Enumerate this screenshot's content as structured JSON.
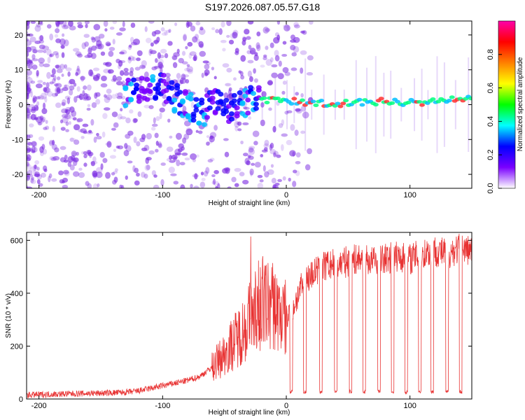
{
  "title": "S197.2026.087.05.57.G18",
  "colors": {
    "snr_line": "#e83232",
    "spectro_points": "#7b2be2",
    "colorbar": [
      "#ffffff",
      "#7a00ff",
      "#0000ff",
      "#00ffff",
      "#00ff00",
      "#ffff00",
      "#ff8000",
      "#ff0000",
      "#ff00aa"
    ]
  },
  "chart_data": [
    {
      "type": "heatmap",
      "name": "spectrogram",
      "xlabel": "Height of straight line (km)",
      "ylabel": "Frequency (Hz)",
      "xlim": [
        -210,
        150
      ],
      "ylim": [
        -24,
        24
      ],
      "xticks": [
        -200,
        -100,
        0,
        100
      ],
      "yticks": [
        -20,
        -10,
        0,
        10,
        20
      ],
      "colorbar": {
        "label": "Normalized spectral amplitude",
        "ticks": [
          "0.0",
          "0.2",
          "0.4",
          "0.6",
          "0.8"
        ],
        "range": [
          0,
          1
        ]
      },
      "ridge": {
        "x": [
          -130,
          -115,
          -105,
          -100,
          -95,
          -85,
          -75,
          -65,
          -60,
          -55,
          -45,
          -35,
          -25,
          -15,
          0,
          25,
          50,
          75,
          100,
          125,
          150
        ],
        "frequency": [
          3,
          4,
          5,
          5,
          3,
          1,
          -1,
          -2,
          2,
          0,
          -1,
          0,
          2,
          1.5,
          1,
          0.5,
          0.5,
          0.8,
          0.8,
          1.0,
          1.5
        ]
      }
    },
    {
      "type": "line",
      "name": "snr",
      "xlabel": "Height of straight line (km)",
      "ylabel": "SNR (10 * v/v)",
      "xlim": [
        -210,
        150
      ],
      "ylim": [
        0,
        630
      ],
      "xticks": [
        -200,
        -100,
        0,
        100
      ],
      "yticks": [
        0,
        200,
        400,
        600
      ],
      "series": [
        {
          "name": "SNR",
          "x": [
            -210,
            -190,
            -170,
            -150,
            -130,
            -120,
            -110,
            -100,
            -90,
            -80,
            -70,
            -60,
            -50,
            -40,
            -35,
            -30,
            -25,
            -20,
            -15,
            -10,
            -5,
            0,
            5,
            10,
            15,
            20,
            30,
            40,
            50,
            60,
            70,
            80,
            90,
            100,
            110,
            120,
            130,
            140,
            150
          ],
          "values": [
            15,
            18,
            20,
            22,
            25,
            30,
            40,
            50,
            60,
            70,
            85,
            120,
            170,
            230,
            260,
            300,
            340,
            360,
            360,
            350,
            320,
            300,
            340,
            400,
            440,
            470,
            500,
            510,
            520,
            530,
            520,
            530,
            540,
            530,
            550,
            560,
            550,
            570,
            560
          ],
          "dropouts_x": [
            4,
            15,
            28,
            40,
            52,
            63,
            75,
            86,
            97,
            108,
            118,
            130,
            141
          ]
        }
      ]
    }
  ]
}
